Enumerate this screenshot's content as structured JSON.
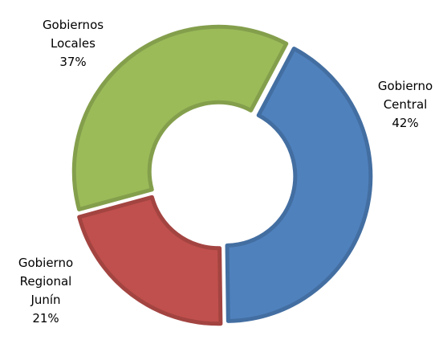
{
  "chart_data": {
    "type": "donut",
    "categories": [
      "Gobierno Central",
      "Gobierno Regional Junín",
      "Gobiernos Locales"
    ],
    "values": [
      42,
      21,
      37
    ],
    "value_labels": [
      "42%",
      "21%",
      "37%"
    ],
    "colors": [
      "#4f81bd",
      "#c0504d",
      "#9bbb59"
    ]
  }
}
